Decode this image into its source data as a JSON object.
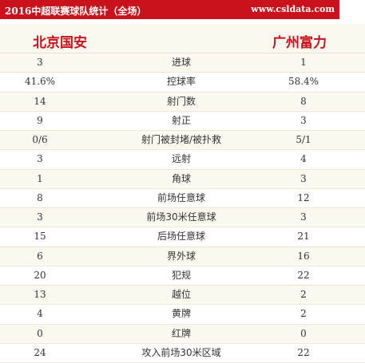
{
  "header": {
    "title": "2016中超联赛球队统计（全场）",
    "site": "www.csldata.com"
  },
  "teams": {
    "home": "北京国安",
    "away": "广州富力"
  },
  "stats": [
    {
      "label": "进球",
      "home": "3",
      "away": "1"
    },
    {
      "label": "控球率",
      "home": "41.6%",
      "away": "58.4%"
    },
    {
      "label": "射门数",
      "home": "14",
      "away": "8"
    },
    {
      "label": "射正",
      "home": "9",
      "away": "3"
    },
    {
      "label": "射门被封堵/被扑救",
      "home": "0/6",
      "away": "5/1"
    },
    {
      "label": "远射",
      "home": "3",
      "away": "4"
    },
    {
      "label": "角球",
      "home": "1",
      "away": "3"
    },
    {
      "label": "前场任意球",
      "home": "8",
      "away": "12"
    },
    {
      "label": "前场30米任意球",
      "home": "3",
      "away": "3"
    },
    {
      "label": "后场任意球",
      "home": "15",
      "away": "21"
    },
    {
      "label": "界外球",
      "home": "6",
      "away": "16"
    },
    {
      "label": "犯规",
      "home": "20",
      "away": "22"
    },
    {
      "label": "越位",
      "home": "13",
      "away": "2"
    },
    {
      "label": "黄牌",
      "home": "4",
      "away": "2"
    },
    {
      "label": "红牌",
      "home": "0",
      "away": "0"
    },
    {
      "label": "攻入前场30米区域",
      "home": "24",
      "away": "22"
    }
  ],
  "colors": {
    "accent": "#c9121c",
    "row_alt": "#fbf8f0"
  }
}
